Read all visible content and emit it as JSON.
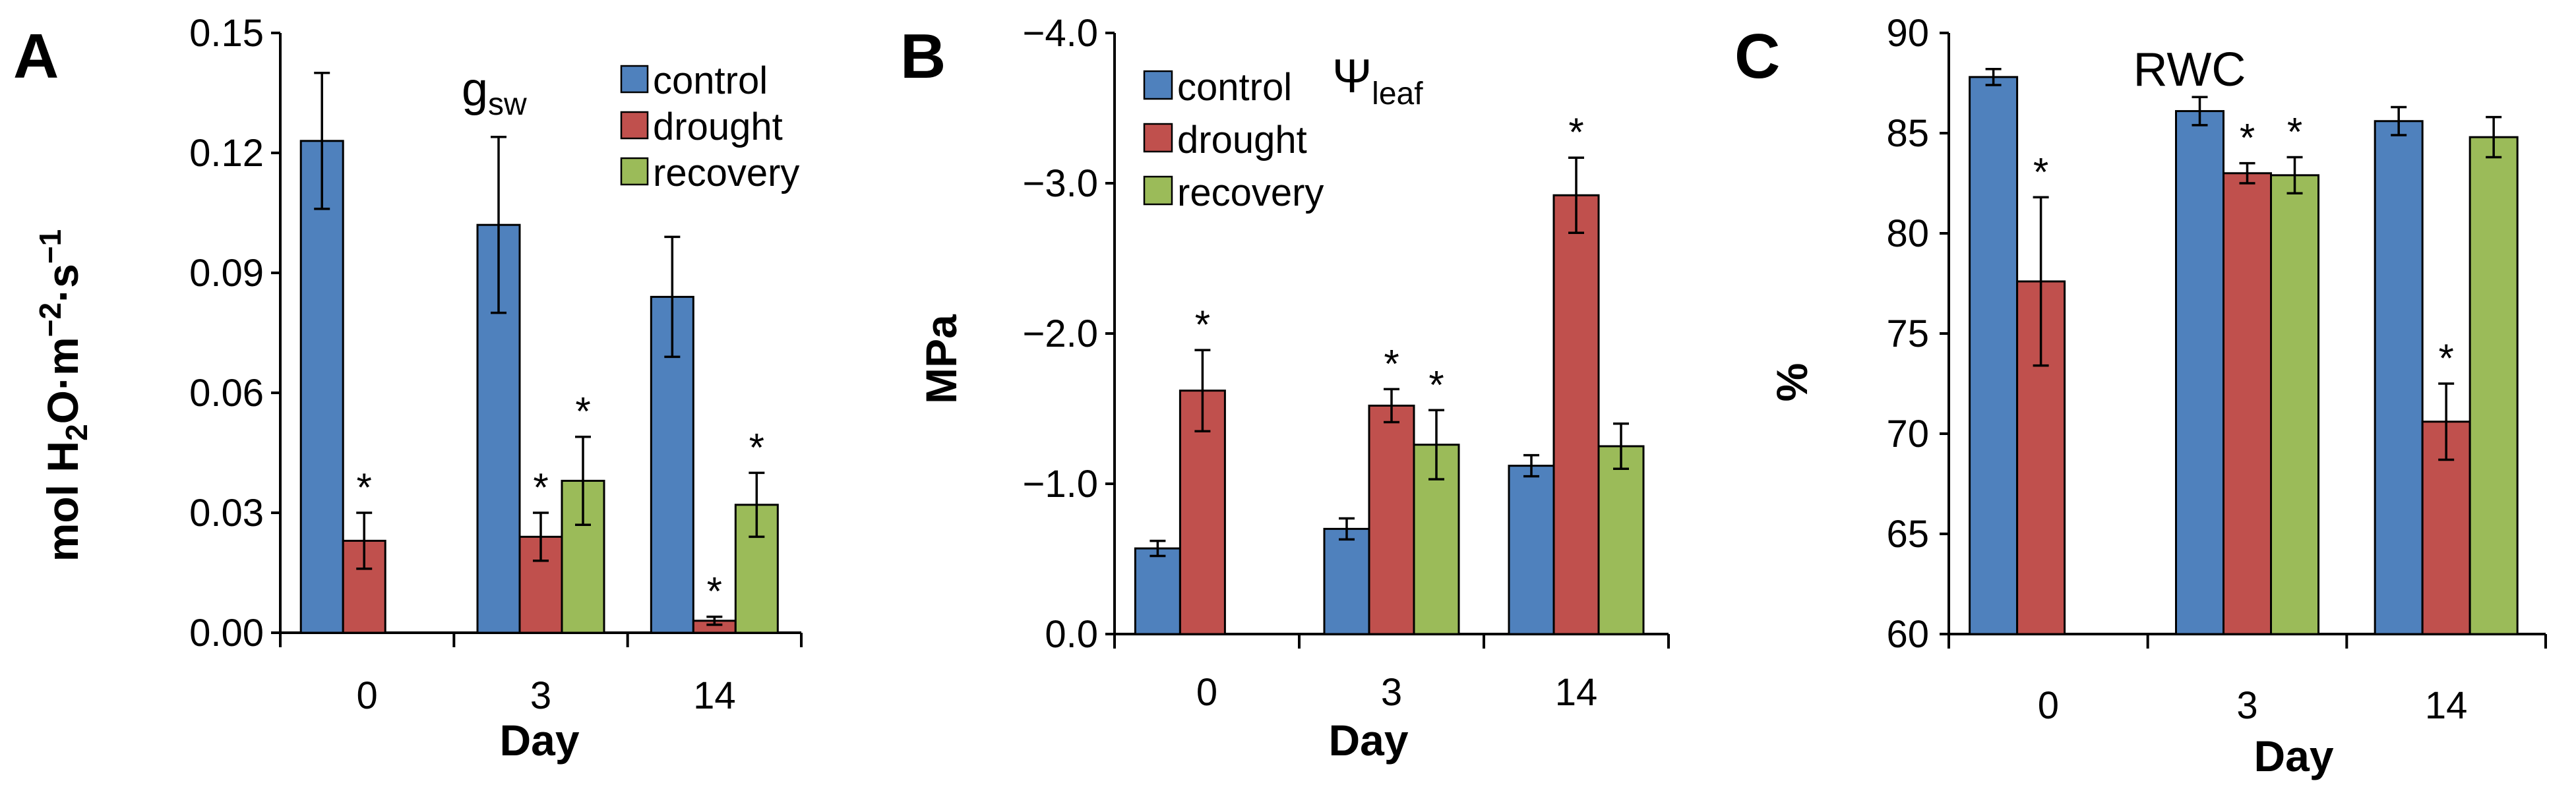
{
  "colors": {
    "control": "#4f81bd",
    "drought": "#c0504d",
    "recovery": "#9bbb59",
    "axis": "#000000"
  },
  "chart_data": [
    {
      "type": "bar",
      "panel": "A",
      "title": {
        "main": "g",
        "sub": "sw"
      },
      "xlabel": "Day",
      "ylabel": {
        "p1": "mol H",
        "sub1": "2",
        "p2": "O·m",
        "sup1": "−2",
        "p3": "·s",
        "sup2": "−1"
      },
      "categories": [
        "0",
        "3",
        "14"
      ],
      "ylim": [
        0,
        0.15
      ],
      "yticks": [
        0,
        0.03,
        0.06,
        0.09,
        0.12,
        0.15
      ],
      "ytick_labels": [
        "0.00",
        "0.03",
        "0.06",
        "0.09",
        "0.12",
        "0.15"
      ],
      "inverted": false,
      "legend": [
        "control",
        "drought",
        "recovery"
      ],
      "series": [
        {
          "name": "control",
          "values": [
            0.123,
            0.102,
            0.084
          ],
          "errors": [
            0.017,
            0.022,
            0.015
          ],
          "sig": [
            false,
            false,
            false
          ]
        },
        {
          "name": "drought",
          "values": [
            0.023,
            0.024,
            0.003
          ],
          "errors": [
            0.007,
            0.006,
            0.001
          ],
          "sig": [
            true,
            true,
            true
          ]
        },
        {
          "name": "recovery",
          "values": [
            null,
            0.038,
            0.032
          ],
          "errors": [
            null,
            0.011,
            0.008
          ],
          "sig": [
            false,
            true,
            true
          ]
        }
      ],
      "star_text": "*"
    },
    {
      "type": "bar",
      "panel": "B",
      "title": {
        "main": "Ψ",
        "sub": "leaf"
      },
      "xlabel": "",
      "ylabel": {
        "p1": "MPa"
      },
      "categories": [
        "0",
        "3",
        "14"
      ],
      "ylim": [
        0,
        -4.0
      ],
      "yticks": [
        0,
        -1,
        -2,
        -3,
        -4
      ],
      "ytick_labels": [
        "0.0",
        "−1.0",
        "−2.0",
        "−3.0",
        "−4.0"
      ],
      "inverted": true,
      "legend": [
        "control",
        "drought",
        "recovery"
      ],
      "series": [
        {
          "name": "control",
          "values": [
            -0.57,
            -0.7,
            -1.12
          ],
          "errors": [
            0.05,
            0.07,
            0.07
          ],
          "sig": [
            false,
            false,
            false
          ]
        },
        {
          "name": "drought",
          "values": [
            -1.62,
            -1.52,
            -2.92
          ],
          "errors": [
            0.27,
            0.11,
            0.25
          ],
          "sig": [
            true,
            true,
            true
          ]
        },
        {
          "name": "recovery",
          "values": [
            null,
            -1.26,
            -1.25
          ],
          "errors": [
            null,
            0.23,
            0.15
          ],
          "sig": [
            false,
            true,
            false
          ]
        }
      ],
      "star_text": "*"
    },
    {
      "type": "bar",
      "panel": "C",
      "title": {
        "main": "RWC",
        "sub": ""
      },
      "xlabel": "Day",
      "ylabel": {
        "p1": "%"
      },
      "categories": [
        "0",
        "3",
        "14"
      ],
      "ylim": [
        60,
        90
      ],
      "yticks": [
        60,
        65,
        70,
        75,
        80,
        85,
        90
      ],
      "ytick_labels": [
        "60",
        "65",
        "70",
        "75",
        "80",
        "85",
        "90"
      ],
      "inverted": false,
      "legend": [],
      "series": [
        {
          "name": "control",
          "values": [
            87.8,
            86.1,
            85.6
          ],
          "errors": [
            0.4,
            0.7,
            0.7
          ],
          "sig": [
            false,
            false,
            false
          ]
        },
        {
          "name": "drought",
          "values": [
            77.6,
            83.0,
            70.6
          ],
          "errors": [
            4.2,
            0.5,
            1.9
          ],
          "sig": [
            true,
            true,
            true
          ]
        },
        {
          "name": "recovery",
          "values": [
            null,
            82.9,
            84.8
          ],
          "errors": [
            null,
            0.9,
            1.0
          ],
          "sig": [
            false,
            true,
            false
          ]
        }
      ],
      "star_text": "*"
    }
  ]
}
